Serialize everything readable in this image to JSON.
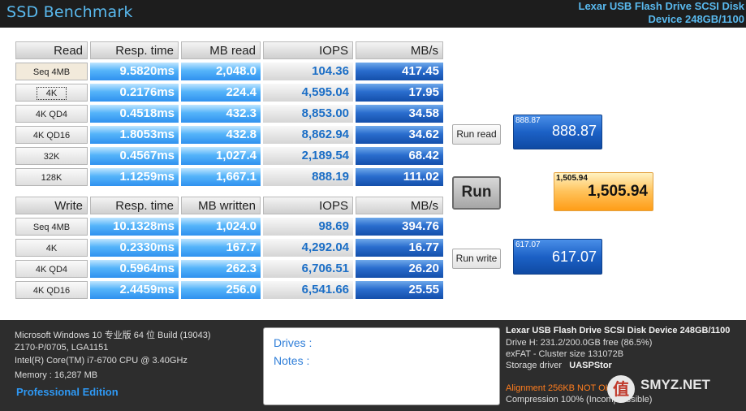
{
  "app": {
    "title": "SSD Benchmark",
    "device_line1": "Lexar USB Flash Drive SCSI Disk",
    "device_line2": "Device 248GB/1100"
  },
  "read_table": {
    "headers": [
      "Read",
      "Resp. time",
      "MB read",
      "IOPS",
      "MB/s"
    ],
    "rows": [
      {
        "label": "Seq 4MB",
        "resp": "9.5820ms",
        "mb": "2,048.0",
        "iops": "104.36",
        "mbs": "417.45"
      },
      {
        "label": "4K",
        "resp": "0.2176ms",
        "mb": "224.4",
        "iops": "4,595.04",
        "mbs": "17.95"
      },
      {
        "label": "4K QD4",
        "resp": "0.4518ms",
        "mb": "432.3",
        "iops": "8,853.00",
        "mbs": "34.58"
      },
      {
        "label": "4K QD16",
        "resp": "1.8053ms",
        "mb": "432.8",
        "iops": "8,862.94",
        "mbs": "34.62"
      },
      {
        "label": "32K",
        "resp": "0.4567ms",
        "mb": "1,027.4",
        "iops": "2,189.54",
        "mbs": "68.42"
      },
      {
        "label": "128K",
        "resp": "1.1259ms",
        "mb": "1,667.1",
        "iops": "888.19",
        "mbs": "111.02"
      }
    ]
  },
  "write_table": {
    "headers": [
      "Write",
      "Resp. time",
      "MB written",
      "IOPS",
      "MB/s"
    ],
    "rows": [
      {
        "label": "Seq 4MB",
        "resp": "10.1328ms",
        "mb": "1,024.0",
        "iops": "98.69",
        "mbs": "394.76"
      },
      {
        "label": "4K",
        "resp": "0.2330ms",
        "mb": "167.7",
        "iops": "4,292.04",
        "mbs": "16.77"
      },
      {
        "label": "4K QD4",
        "resp": "0.5964ms",
        "mb": "262.3",
        "iops": "6,706.51",
        "mbs": "26.20"
      },
      {
        "label": "4K QD16",
        "resp": "2.4459ms",
        "mb": "256.0",
        "iops": "6,541.66",
        "mbs": "25.55"
      }
    ]
  },
  "buttons": {
    "run_read": "Run read",
    "run": "Run",
    "run_write": "Run write"
  },
  "scores": {
    "read_small": "888.87",
    "read": "888.87",
    "total_small": "1,505.94",
    "total": "1,505.94",
    "write_small": "617.07",
    "write": "617.07"
  },
  "system": {
    "os": "Microsoft Windows 10 专业版 64 位 Build (19043)",
    "board": "Z170-P/0705, LGA1151",
    "cpu": "Intel(R) Core(TM) i7-6700 CPU @ 3.40GHz",
    "memory": "Memory : 16,287 MB",
    "edition": "Professional Edition"
  },
  "notes": {
    "drives_label": "Drives :",
    "notes_label": "Notes :"
  },
  "device_info": {
    "title": "Lexar USB Flash Drive SCSI Disk Device 248GB/1100",
    "drive": "Drive H: 231.2/200.0GB free (86.5%)",
    "fs": "exFAT - Cluster size 131072B",
    "driver_label": "Storage driver",
    "driver_value": "UASPStor",
    "alignment": "Alignment 256KB NOT OK",
    "compression": "Compression 100% (Incompressible)"
  },
  "watermark": {
    "text": "SMYZ.NET"
  },
  "colors": {
    "accent": "#59b9ee",
    "light_blue_cell": "#4aa8f5",
    "dark_blue_cell": "#1d5fc2",
    "gray_cell_text": "#1b6ec6",
    "total_score": "#ffb23a",
    "warning": "#ff7d1e"
  }
}
